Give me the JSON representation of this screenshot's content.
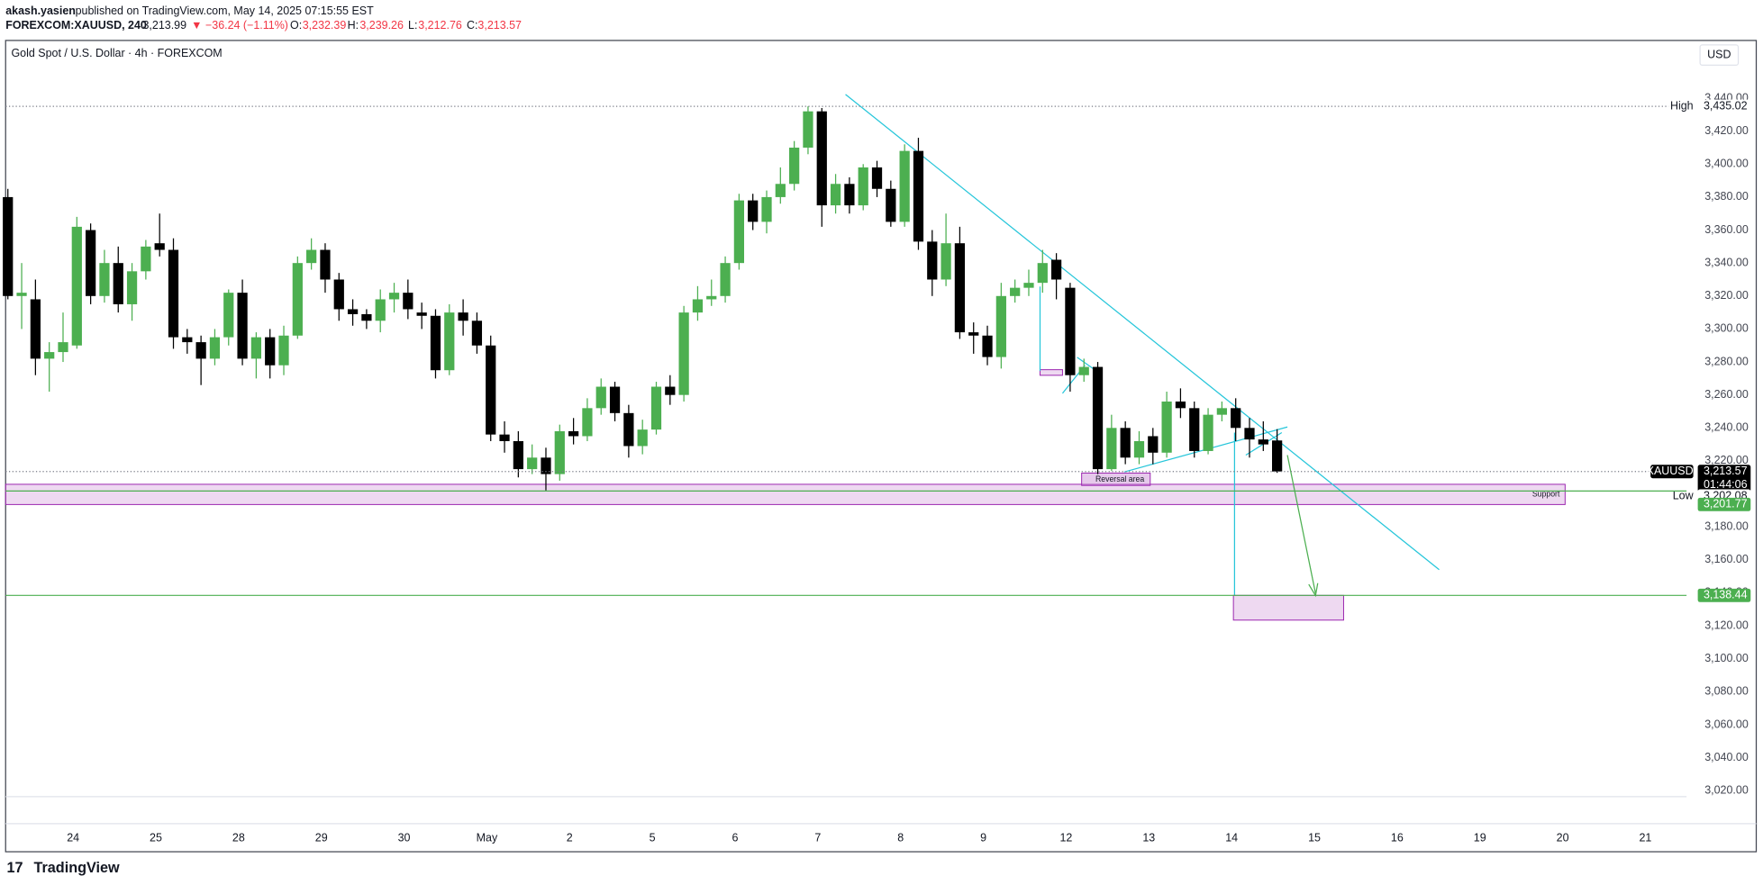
{
  "header": {
    "author": "akash.yasien",
    "published": "published on TradingView.com, May 14, 2025 07:15:55 EST",
    "symbol": "FOREXCOM:XAUUSD, 240",
    "last": "3,213.99",
    "change": "▼ −36.24 (−1.11%)",
    "o_label": "O:",
    "o": "3,232.39",
    "h_label": "H:",
    "h": "3,239.26",
    "l_label": "L:",
    "l": "3,212.76",
    "c_label": "C:",
    "c": "3,213.57"
  },
  "footer": {
    "logo": "TradingView"
  },
  "chart_data": {
    "type": "candlestick",
    "title": "Gold Spot / U.S. Dollar · 4h · FOREXCOM",
    "currency": "USD",
    "ylim": [
      3000,
      3475
    ],
    "yticks": [
      {
        "value": 3020,
        "label": "3,020.00"
      },
      {
        "value": 3040,
        "label": "3,040.00"
      },
      {
        "value": 3060,
        "label": "3,060.00"
      },
      {
        "value": 3080,
        "label": "3,080.00"
      },
      {
        "value": 3100,
        "label": "3,100.00"
      },
      {
        "value": 3120,
        "label": "3,120.00"
      },
      {
        "value": 3140,
        "label": "3,140.00"
      },
      {
        "value": 3160,
        "label": "3,160.00"
      },
      {
        "value": 3180,
        "label": "3,180.00"
      },
      {
        "value": 3200,
        "label": "3,200.00"
      },
      {
        "value": 3220,
        "label": "3,220.00"
      },
      {
        "value": 3240,
        "label": "3,240.00"
      },
      {
        "value": 3260,
        "label": "3,260.00"
      },
      {
        "value": 3280,
        "label": "3,280.00"
      },
      {
        "value": 3300,
        "label": "3,300.00"
      },
      {
        "value": 3320,
        "label": "3,320.00"
      },
      {
        "value": 3340,
        "label": "3,340.00"
      },
      {
        "value": 3360,
        "label": "3,360.00"
      },
      {
        "value": 3380,
        "label": "3,380.00"
      },
      {
        "value": 3400,
        "label": "3,400.00"
      },
      {
        "value": 3420,
        "label": "3,420.00"
      },
      {
        "value": 3440,
        "label": "3,440.00"
      }
    ],
    "x_labels": [
      "24",
      "25",
      "28",
      "29",
      "30",
      "May",
      "2",
      "5",
      "6",
      "7",
      "8",
      "9",
      "12",
      "13",
      "14",
      "15",
      "16",
      "19",
      "20",
      "21"
    ],
    "up_color": "#4caf50",
    "down_color": "#000000",
    "open": [
      3380,
      3320,
      3318,
      3282,
      3286,
      3290,
      3360,
      3320,
      3340,
      3315,
      3335,
      3352,
      3348,
      3295,
      3292,
      3282,
      3295,
      3322,
      3282,
      3295,
      3278,
      3296,
      3340,
      3348,
      3330,
      3312,
      3309,
      3305,
      3318,
      3322,
      3310,
      3308,
      3275,
      3310,
      3305,
      3290,
      3236,
      3232,
      3215,
      3222,
      3212,
      3238,
      3235,
      3252,
      3265,
      3249,
      3229,
      3239,
      3265,
      3260,
      3310,
      3318,
      3320,
      3340,
      3378,
      3365,
      3380,
      3388,
      3410,
      3432,
      3375,
      3388,
      3375,
      3398,
      3385,
      3365,
      3408,
      3353,
      3330,
      3352,
      3298,
      3296,
      3283,
      3320,
      3325,
      3328,
      3342,
      3325,
      3272,
      3277,
      3215,
      3240,
      3222,
      3235,
      3225,
      3256,
      3252,
      3226,
      3248,
      3252,
      3240,
      3233,
      3232.39
    ],
    "high": [
      3385,
      3340,
      3330,
      3292,
      3310,
      3368,
      3364,
      3348,
      3350,
      3340,
      3354,
      3370,
      3355,
      3300,
      3296,
      3300,
      3324,
      3330,
      3298,
      3300,
      3302,
      3344,
      3355,
      3352,
      3334,
      3318,
      3312,
      3324,
      3328,
      3330,
      3316,
      3312,
      3315,
      3318,
      3310,
      3296,
      3244,
      3238,
      3230,
      3228,
      3242,
      3246,
      3258,
      3270,
      3268,
      3254,
      3245,
      3268,
      3272,
      3314,
      3326,
      3330,
      3344,
      3382,
      3382,
      3384,
      3398,
      3414,
      3435.02,
      3434,
      3394,
      3392,
      3400,
      3402,
      3390,
      3412,
      3416,
      3360,
      3370,
      3362,
      3304,
      3302,
      3328,
      3330,
      3336,
      3348,
      3346,
      3328,
      3282,
      3280,
      3248,
      3244,
      3238,
      3240,
      3262,
      3264,
      3256,
      3252,
      3256,
      3258,
      3246,
      3244,
      3239.26
    ],
    "low": [
      3318,
      3300,
      3272,
      3262,
      3280,
      3288,
      3315,
      3316,
      3310,
      3305,
      3330,
      3344,
      3288,
      3285,
      3266,
      3278,
      3290,
      3278,
      3270,
      3270,
      3272,
      3294,
      3336,
      3322,
      3305,
      3302,
      3300,
      3298,
      3310,
      3306,
      3300,
      3270,
      3272,
      3296,
      3285,
      3232,
      3225,
      3210,
      3212,
      3202.08,
      3208,
      3230,
      3232,
      3248,
      3244,
      3222,
      3224,
      3236,
      3254,
      3256,
      3305,
      3314,
      3316,
      3336,
      3360,
      3358,
      3376,
      3384,
      3406,
      3362,
      3370,
      3370,
      3372,
      3380,
      3362,
      3362,
      3348,
      3320,
      3326,
      3294,
      3285,
      3278,
      3276,
      3316,
      3320,
      3322,
      3318,
      3262,
      3268,
      3212,
      3214,
      3218,
      3218,
      3218,
      3222,
      3246,
      3222,
      3224,
      3244,
      3232,
      3222,
      3226,
      3212.76
    ],
    "close": [
      3320,
      3322,
      3282,
      3286,
      3292,
      3362,
      3320,
      3340,
      3315,
      3335,
      3350,
      3348,
      3295,
      3292,
      3282,
      3295,
      3322,
      3282,
      3295,
      3278,
      3296,
      3340,
      3348,
      3330,
      3312,
      3309,
      3305,
      3318,
      3322,
      3312,
      3308,
      3275,
      3310,
      3305,
      3290,
      3236,
      3232,
      3215,
      3222,
      3212,
      3238,
      3235,
      3252,
      3265,
      3249,
      3229,
      3239,
      3265,
      3260,
      3310,
      3318,
      3320,
      3340,
      3378,
      3365,
      3380,
      3388,
      3410,
      3432,
      3375,
      3388,
      3375,
      3398,
      3385,
      3365,
      3408,
      3353,
      3330,
      3352,
      3298,
      3296,
      3283,
      3320,
      3325,
      3328,
      3340,
      3330,
      3272,
      3277,
      3215,
      3240,
      3222,
      3232,
      3225,
      3256,
      3252,
      3226,
      3248,
      3252,
      3240,
      3233,
      3230,
      3213.57
    ],
    "price_tags": [
      {
        "name": "High",
        "value": 3435.02,
        "label": "3,435.02"
      },
      {
        "name": "XAUUSD",
        "value": 3213.57,
        "label": "3,213.57",
        "countdown": "01:44:06"
      },
      {
        "name": "Low",
        "value": 3202.08,
        "label": "3,202.08"
      },
      {
        "value": 3201.77,
        "label": "3,201.77"
      },
      {
        "value": 3138.44,
        "label": "3,138.44"
      }
    ],
    "annotations": [
      "Reversal area",
      "Support"
    ]
  }
}
